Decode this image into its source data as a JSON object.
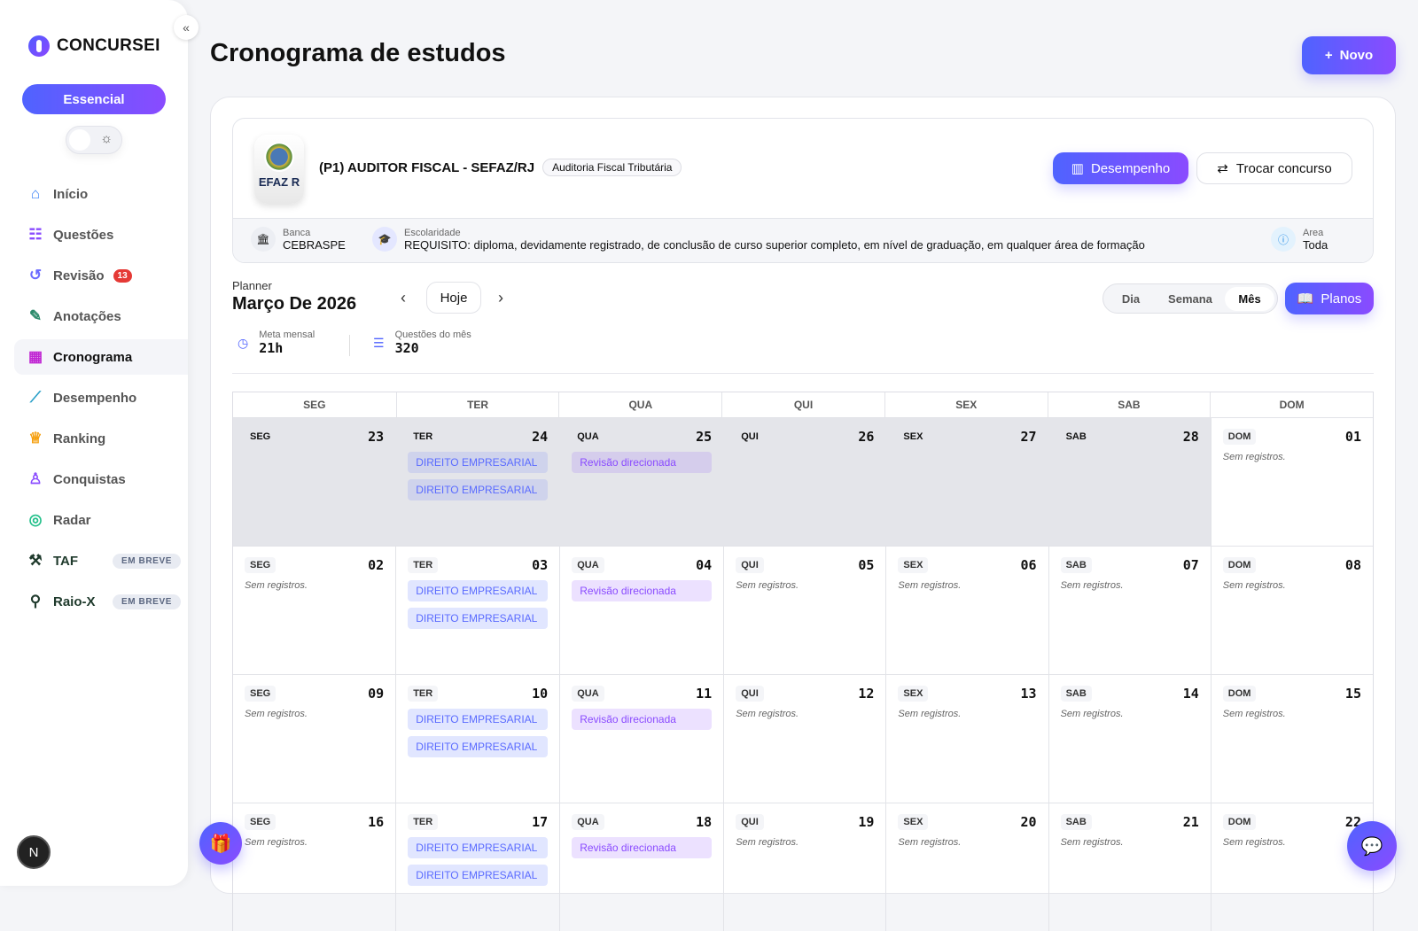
{
  "sidebar": {
    "brand": "CONCURSEI",
    "plan": "Essencial",
    "items": [
      {
        "label": "Início",
        "icon": "home-icon",
        "glyph": "⌂",
        "color": "#3b82f6"
      },
      {
        "label": "Questões",
        "icon": "clipboard-icon",
        "glyph": "☷",
        "color": "#8a4bff"
      },
      {
        "label": "Revisão",
        "icon": "rotate-icon",
        "glyph": "↺",
        "color": "#6b6bff",
        "badge": "13"
      },
      {
        "label": "Anotações",
        "icon": "notebook-icon",
        "glyph": "✎",
        "color": "#2a8a6a"
      },
      {
        "label": "Cronograma",
        "icon": "calendar-icon",
        "glyph": "▦",
        "color": "#c026d3",
        "active": true
      },
      {
        "label": "Desempenho",
        "icon": "chart-line-icon",
        "glyph": "⟋",
        "color": "#2aa0c8"
      },
      {
        "label": "Ranking",
        "icon": "trophy-icon",
        "glyph": "♕",
        "color": "#f59e0b"
      },
      {
        "label": "Conquistas",
        "icon": "award-icon",
        "glyph": "♙",
        "color": "#8a4bff"
      },
      {
        "label": "Radar",
        "icon": "radar-icon",
        "glyph": "◎",
        "color": "#22c08a"
      },
      {
        "label": "TAF",
        "icon": "dumbbell-icon",
        "glyph": "⚒",
        "color": "#1f3a2c",
        "soon": "EM BREVE"
      },
      {
        "label": "Raio-X",
        "icon": "search-icon",
        "glyph": "⚲",
        "color": "#1f3a2c",
        "soon": "EM BREVE"
      }
    ],
    "avatar": "N"
  },
  "header": {
    "title": "Cronograma de estudos",
    "new_label": "Novo"
  },
  "concurso": {
    "seal_text": "EFAZ R",
    "name": "(P1) AUDITOR FISCAL - SEFAZ/RJ",
    "tag": "Auditoria Fiscal Tributária",
    "desempenho": "Desempenho",
    "trocar": "Trocar concurso",
    "banca_label": "Banca",
    "banca": "CEBRASPE",
    "escolaridade_label": "Escolaridade",
    "escolaridade": "REQUISITO: diploma, devidamente registrado, de conclusão de curso superior completo, em nível de graduação, em qualquer área de formação",
    "area_label": "Area",
    "area": "Toda"
  },
  "planner": {
    "label": "Planner",
    "month": "Março De 2026",
    "today": "Hoje",
    "views": [
      "Dia",
      "Semana",
      "Mês"
    ],
    "active_view": "Mês",
    "planos": "Planos",
    "meta_label": "Meta mensal",
    "meta": "21h",
    "questoes_label": "Questões do mês",
    "questoes": "320"
  },
  "calendar": {
    "weekdays": [
      "SEG",
      "TER",
      "QUA",
      "QUI",
      "SEX",
      "SAB",
      "DOM"
    ],
    "empty_text": "Sem registros.",
    "weeks": [
      [
        {
          "n": "23",
          "out": true,
          "ev": []
        },
        {
          "n": "24",
          "out": true,
          "ev": [
            "DIREITO EMPRESARIAL",
            "DIREITO EMPRESARIAL"
          ]
        },
        {
          "n": "25",
          "out": true,
          "ev": [
            "Revisão direcionada"
          ]
        },
        {
          "n": "26",
          "out": true,
          "ev": []
        },
        {
          "n": "27",
          "out": true,
          "ev": []
        },
        {
          "n": "28",
          "out": true,
          "ev": []
        },
        {
          "n": "01",
          "ev": []
        }
      ],
      [
        {
          "n": "02",
          "ev": []
        },
        {
          "n": "03",
          "ev": [
            "DIREITO EMPRESARIAL",
            "DIREITO EMPRESARIAL"
          ]
        },
        {
          "n": "04",
          "ev": [
            "Revisão direcionada"
          ]
        },
        {
          "n": "05",
          "ev": []
        },
        {
          "n": "06",
          "ev": []
        },
        {
          "n": "07",
          "ev": []
        },
        {
          "n": "08",
          "ev": []
        }
      ],
      [
        {
          "n": "09",
          "ev": []
        },
        {
          "n": "10",
          "ev": [
            "DIREITO EMPRESARIAL",
            "DIREITO EMPRESARIAL"
          ]
        },
        {
          "n": "11",
          "ev": [
            "Revisão direcionada"
          ]
        },
        {
          "n": "12",
          "ev": []
        },
        {
          "n": "13",
          "ev": []
        },
        {
          "n": "14",
          "ev": []
        },
        {
          "n": "15",
          "ev": []
        }
      ],
      [
        {
          "n": "16",
          "ev": []
        },
        {
          "n": "17",
          "ev": [
            "DIREITO EMPRESARIAL",
            "DIREITO EMPRESARIAL"
          ]
        },
        {
          "n": "18",
          "ev": [
            "Revisão direcionada"
          ]
        },
        {
          "n": "19",
          "ev": []
        },
        {
          "n": "20",
          "ev": []
        },
        {
          "n": "21",
          "ev": []
        },
        {
          "n": "22",
          "ev": []
        }
      ]
    ]
  },
  "colors": {
    "accent_start": "#4f63ff",
    "accent_end": "#8a4bff",
    "badge": "#e53935"
  }
}
